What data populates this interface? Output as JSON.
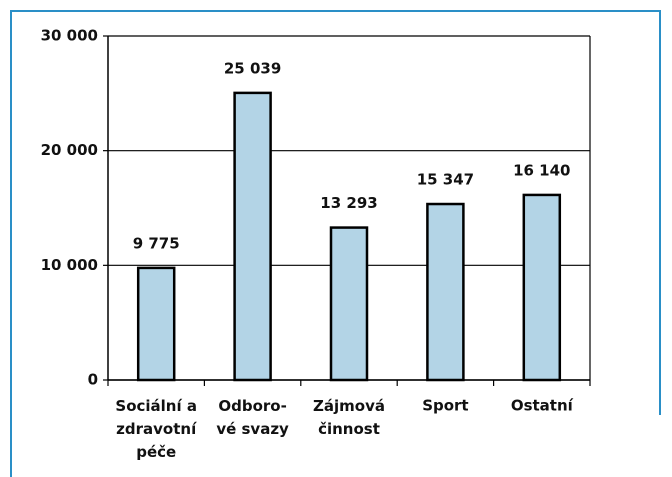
{
  "chart_data": {
    "type": "bar",
    "categories": [
      "Sociální a\nzdravotní\npéče",
      "Odboro-\nvé svazy",
      "Zájmová\nčinnost",
      "Sport",
      "Ostatní"
    ],
    "values": [
      9775,
      25039,
      13293,
      15347,
      16140
    ],
    "value_labels": [
      "9 775",
      "25 039",
      "13 293",
      "15 347",
      "16 140"
    ],
    "color": "#b3d4e6",
    "ylim": [
      0,
      30000
    ],
    "yticks": [
      0,
      {
        "value": 10000,
        "label": "10 000"
      },
      {
        "value": 20000,
        "label": "20 000"
      },
      {
        "value": 30000,
        "label": "30 000"
      }
    ],
    "grid": true
  }
}
